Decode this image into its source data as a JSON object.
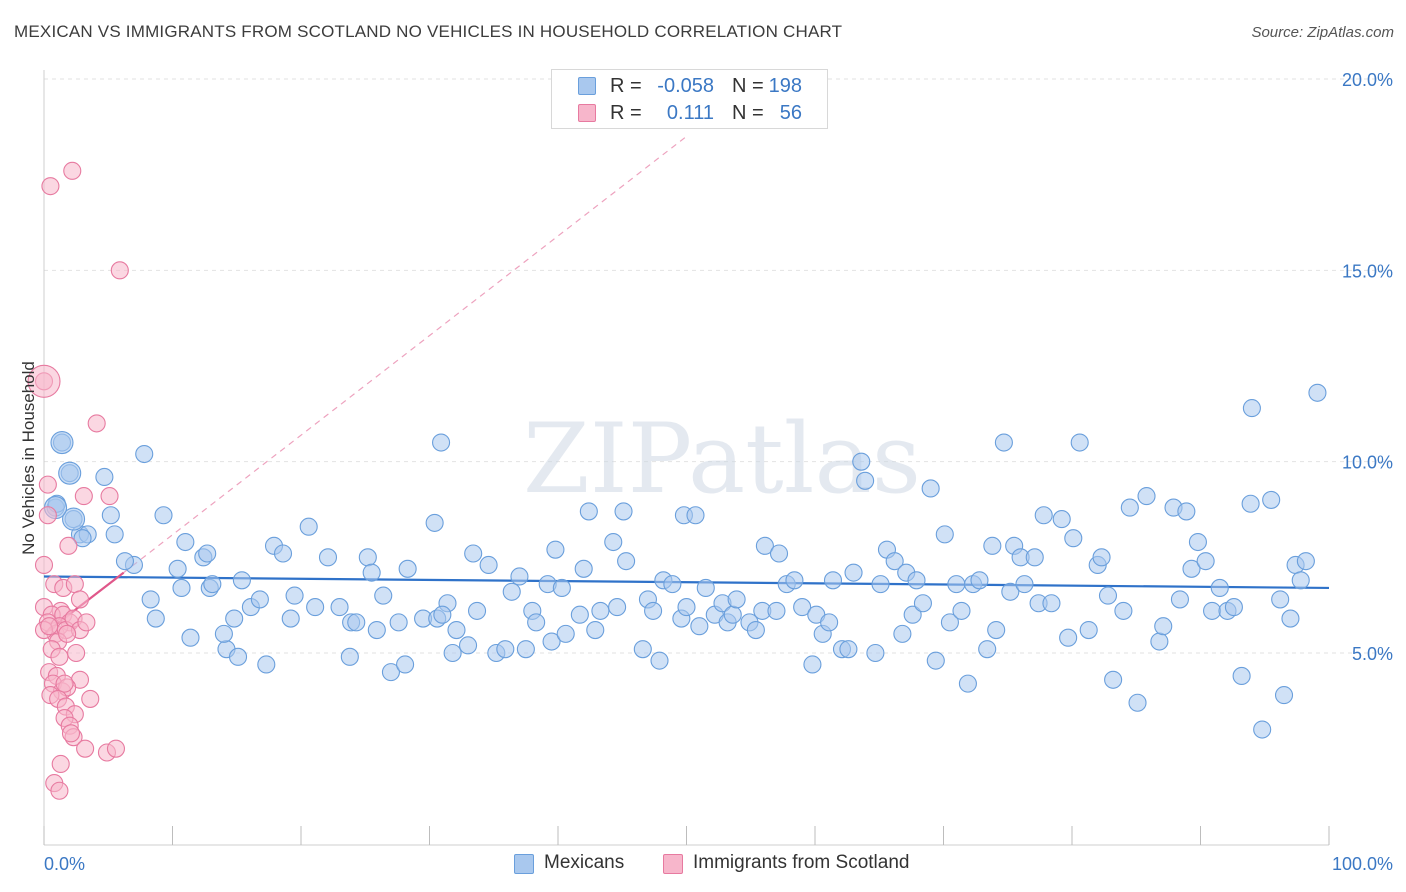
{
  "title": "MEXICAN VS IMMIGRANTS FROM SCOTLAND NO VEHICLES IN HOUSEHOLD CORRELATION CHART",
  "source": "Source: ZipAtlas.com",
  "watermark": "ZIPatlas",
  "legend": {
    "rows": [
      {
        "r_label": "R =",
        "r_value": "-0.058",
        "n_label": "N =",
        "n_value": "198"
      },
      {
        "r_label": "R =",
        "r_value": "0.111",
        "n_label": "N =",
        "n_value": "56"
      }
    ]
  },
  "bottom_legend": [
    "Mexicans",
    "Immigrants from Scotland"
  ],
  "colors": {
    "blue_fill": "#a9c8ee",
    "blue_stroke": "#6a9fdc",
    "blue_line": "#2f72c9",
    "pink_fill": "#f7b6cb",
    "pink_stroke": "#e77aa0",
    "pink_line": "#e0578a",
    "axis_text": "#3b78c4",
    "grid": "#e2e2e2"
  },
  "chart_data": {
    "type": "scatter",
    "title": "MEXICAN VS IMMIGRANTS FROM SCOTLAND NO VEHICLES IN HOUSEHOLD CORRELATION CHART",
    "xlabel": "",
    "ylabel": "No Vehicles in Household",
    "xlim": [
      0,
      100
    ],
    "ylim": [
      0,
      21
    ],
    "x_tick_labels": [
      "0.0%",
      "100.0%"
    ],
    "y_ticks": [
      5,
      10,
      15,
      20
    ],
    "y_tick_labels": [
      "5.0%",
      "10.0%",
      "15.0%",
      "20.0%"
    ],
    "series": [
      {
        "name": "Mexicans",
        "trend": {
          "x0": 0,
          "y0": 7.0,
          "x1": 100,
          "y1": 6.7
        },
        "points": [
          [
            1.4,
            10.5
          ],
          [
            2.0,
            9.7
          ],
          [
            0.9,
            8.8
          ],
          [
            2.3,
            8.5
          ],
          [
            2.8,
            8.1
          ],
          [
            3.4,
            8.1
          ],
          [
            5.2,
            8.6
          ],
          [
            5.5,
            8.1
          ],
          [
            4.7,
            9.6
          ],
          [
            7.8,
            10.2
          ],
          [
            7.0,
            7.3
          ],
          [
            9.3,
            8.6
          ],
          [
            10.4,
            7.2
          ],
          [
            10.7,
            6.7
          ],
          [
            6.3,
            7.4
          ],
          [
            8.3,
            6.4
          ],
          [
            8.7,
            5.9
          ],
          [
            11.0,
            7.9
          ],
          [
            11.4,
            5.4
          ],
          [
            12.9,
            6.7
          ],
          [
            12.4,
            7.5
          ],
          [
            12.7,
            7.6
          ],
          [
            13.1,
            6.8
          ],
          [
            14.2,
            5.1
          ],
          [
            14.8,
            5.9
          ],
          [
            15.1,
            4.9
          ],
          [
            15.4,
            6.9
          ],
          [
            16.1,
            6.2
          ],
          [
            16.8,
            6.4
          ],
          [
            17.3,
            4.7
          ],
          [
            17.9,
            7.8
          ],
          [
            18.6,
            7.6
          ],
          [
            19.5,
            6.5
          ],
          [
            19.2,
            5.9
          ],
          [
            20.6,
            8.3
          ],
          [
            21.1,
            6.2
          ],
          [
            22.1,
            7.5
          ],
          [
            23.0,
            6.2
          ],
          [
            23.8,
            4.9
          ],
          [
            23.9,
            5.8
          ],
          [
            24.3,
            5.8
          ],
          [
            25.2,
            7.5
          ],
          [
            25.5,
            7.1
          ],
          [
            25.9,
            5.6
          ],
          [
            26.4,
            6.5
          ],
          [
            27.0,
            4.5
          ],
          [
            27.6,
            5.8
          ],
          [
            28.1,
            4.7
          ],
          [
            28.3,
            7.2
          ],
          [
            29.5,
            5.9
          ],
          [
            30.4,
            8.4
          ],
          [
            30.6,
            5.9
          ],
          [
            30.9,
            10.5
          ],
          [
            31.4,
            6.3
          ],
          [
            31.8,
            5.0
          ],
          [
            32.1,
            5.6
          ],
          [
            33.0,
            5.2
          ],
          [
            33.7,
            6.1
          ],
          [
            33.4,
            7.6
          ],
          [
            34.6,
            7.3
          ],
          [
            35.2,
            5.0
          ],
          [
            35.9,
            5.1
          ],
          [
            36.4,
            6.6
          ],
          [
            37.0,
            7.0
          ],
          [
            37.5,
            5.1
          ],
          [
            38.0,
            6.1
          ],
          [
            38.3,
            5.8
          ],
          [
            39.5,
            5.3
          ],
          [
            39.2,
            6.8
          ],
          [
            39.8,
            7.7
          ],
          [
            40.3,
            6.7
          ],
          [
            40.6,
            5.5
          ],
          [
            41.7,
            6.0
          ],
          [
            42.0,
            7.2
          ],
          [
            42.4,
            8.7
          ],
          [
            42.9,
            5.6
          ],
          [
            43.3,
            6.1
          ],
          [
            44.3,
            7.9
          ],
          [
            44.6,
            6.2
          ],
          [
            45.3,
            7.4
          ],
          [
            45.1,
            8.7
          ],
          [
            46.6,
            5.1
          ],
          [
            47.0,
            6.4
          ],
          [
            47.4,
            6.1
          ],
          [
            47.9,
            4.8
          ],
          [
            48.2,
            6.9
          ],
          [
            48.9,
            6.8
          ],
          [
            49.6,
            5.9
          ],
          [
            50.0,
            6.2
          ],
          [
            49.8,
            8.6
          ],
          [
            50.7,
            8.6
          ],
          [
            51.0,
            5.7
          ],
          [
            51.5,
            6.7
          ],
          [
            52.2,
            6.0
          ],
          [
            52.8,
            6.3
          ],
          [
            53.2,
            5.8
          ],
          [
            53.6,
            6.0
          ],
          [
            53.9,
            6.4
          ],
          [
            54.9,
            5.8
          ],
          [
            55.4,
            5.6
          ],
          [
            55.9,
            6.1
          ],
          [
            56.1,
            7.8
          ],
          [
            57.2,
            7.6
          ],
          [
            57.0,
            6.1
          ],
          [
            57.8,
            6.8
          ],
          [
            58.4,
            6.9
          ],
          [
            59.0,
            6.2
          ],
          [
            59.8,
            4.7
          ],
          [
            60.1,
            6.0
          ],
          [
            60.6,
            5.5
          ],
          [
            61.1,
            5.8
          ],
          [
            61.4,
            6.9
          ],
          [
            62.1,
            5.1
          ],
          [
            62.6,
            5.1
          ],
          [
            63.0,
            7.1
          ],
          [
            63.6,
            10.0
          ],
          [
            63.9,
            9.5
          ],
          [
            64.7,
            5.0
          ],
          [
            65.1,
            6.8
          ],
          [
            65.6,
            7.7
          ],
          [
            66.2,
            7.4
          ],
          [
            66.8,
            5.5
          ],
          [
            67.1,
            7.1
          ],
          [
            67.6,
            6.0
          ],
          [
            67.9,
            6.9
          ],
          [
            68.4,
            6.3
          ],
          [
            69.0,
            9.3
          ],
          [
            69.4,
            4.8
          ],
          [
            70.1,
            8.1
          ],
          [
            70.5,
            5.8
          ],
          [
            71.0,
            6.8
          ],
          [
            71.4,
            6.1
          ],
          [
            71.9,
            4.2
          ],
          [
            72.3,
            6.8
          ],
          [
            72.8,
            6.9
          ],
          [
            73.4,
            5.1
          ],
          [
            73.8,
            7.8
          ],
          [
            74.1,
            5.6
          ],
          [
            74.7,
            10.5
          ],
          [
            75.2,
            6.6
          ],
          [
            75.5,
            7.8
          ],
          [
            76.0,
            7.5
          ],
          [
            76.3,
            6.8
          ],
          [
            77.1,
            7.5
          ],
          [
            77.4,
            6.3
          ],
          [
            77.8,
            8.6
          ],
          [
            78.4,
            6.3
          ],
          [
            79.2,
            8.5
          ],
          [
            79.7,
            5.4
          ],
          [
            80.1,
            8.0
          ],
          [
            80.6,
            10.5
          ],
          [
            81.3,
            5.6
          ],
          [
            82.0,
            7.3
          ],
          [
            82.3,
            7.5
          ],
          [
            82.8,
            6.5
          ],
          [
            83.2,
            4.3
          ],
          [
            84.0,
            6.1
          ],
          [
            84.5,
            8.8
          ],
          [
            85.1,
            3.7
          ],
          [
            85.8,
            9.1
          ],
          [
            86.8,
            5.3
          ],
          [
            87.1,
            5.7
          ],
          [
            87.9,
            8.8
          ],
          [
            88.4,
            6.4
          ],
          [
            88.9,
            8.7
          ],
          [
            89.3,
            7.2
          ],
          [
            89.8,
            7.9
          ],
          [
            90.4,
            7.4
          ],
          [
            90.9,
            6.1
          ],
          [
            91.5,
            6.7
          ],
          [
            92.1,
            6.1
          ],
          [
            92.6,
            6.2
          ],
          [
            93.2,
            4.4
          ],
          [
            93.9,
            8.9
          ],
          [
            94.0,
            11.4
          ],
          [
            94.8,
            3.0
          ],
          [
            95.5,
            9.0
          ],
          [
            96.2,
            6.4
          ],
          [
            96.5,
            3.9
          ],
          [
            97.0,
            5.9
          ],
          [
            97.4,
            7.3
          ],
          [
            97.8,
            6.9
          ],
          [
            98.2,
            7.4
          ],
          [
            99.1,
            11.8
          ],
          [
            1.0,
            8.9
          ],
          [
            3.0,
            8.0
          ],
          [
            14.0,
            5.5
          ],
          [
            31.0,
            6.0
          ]
        ]
      },
      {
        "name": "Immigrants from Scotland",
        "trend": {
          "x0": 0,
          "y0": 5.5,
          "x1": 6.2,
          "y1": 7.1,
          "dashed_to_x": 50,
          "dashed_to_y": 18.5
        },
        "points": [
          [
            0.5,
            17.2
          ],
          [
            2.2,
            17.6
          ],
          [
            5.9,
            15.0
          ],
          [
            0.0,
            12.1
          ],
          [
            4.1,
            11.0
          ],
          [
            0.0,
            7.3
          ],
          [
            1.9,
            7.8
          ],
          [
            0.3,
            9.4
          ],
          [
            3.1,
            9.1
          ],
          [
            5.1,
            9.1
          ],
          [
            0.3,
            8.6
          ],
          [
            0.8,
            6.8
          ],
          [
            1.5,
            6.7
          ],
          [
            2.4,
            6.8
          ],
          [
            1.3,
            6.1
          ],
          [
            2.8,
            6.4
          ],
          [
            0.0,
            6.2
          ],
          [
            0.6,
            6.0
          ],
          [
            1.5,
            6.0
          ],
          [
            2.0,
            5.8
          ],
          [
            0.3,
            5.8
          ],
          [
            0.9,
            5.5
          ],
          [
            1.2,
            5.7
          ],
          [
            1.7,
            5.6
          ],
          [
            2.3,
            5.9
          ],
          [
            2.8,
            5.6
          ],
          [
            3.3,
            5.8
          ],
          [
            0.0,
            5.6
          ],
          [
            0.4,
            5.7
          ],
          [
            1.1,
            5.3
          ],
          [
            1.8,
            5.5
          ],
          [
            0.6,
            5.1
          ],
          [
            1.2,
            4.9
          ],
          [
            0.4,
            4.5
          ],
          [
            1.0,
            4.4
          ],
          [
            2.8,
            4.3
          ],
          [
            0.7,
            4.2
          ],
          [
            1.4,
            4.0
          ],
          [
            1.8,
            4.1
          ],
          [
            0.5,
            3.9
          ],
          [
            1.1,
            3.8
          ],
          [
            1.7,
            3.6
          ],
          [
            2.4,
            3.4
          ],
          [
            3.6,
            3.8
          ],
          [
            1.6,
            3.3
          ],
          [
            2.0,
            3.1
          ],
          [
            2.3,
            2.8
          ],
          [
            2.1,
            2.9
          ],
          [
            3.2,
            2.5
          ],
          [
            4.9,
            2.4
          ],
          [
            5.6,
            2.5
          ],
          [
            1.3,
            2.1
          ],
          [
            0.8,
            1.6
          ],
          [
            1.2,
            1.4
          ],
          [
            1.6,
            4.2
          ],
          [
            2.5,
            5.0
          ]
        ]
      }
    ]
  }
}
